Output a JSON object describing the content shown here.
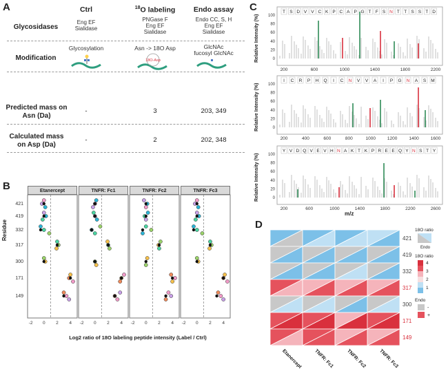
{
  "panels": {
    "a": "A",
    "b": "B",
    "c": "C",
    "d": "D"
  },
  "table": {
    "headers": [
      "Ctrl",
      "18O labeling",
      "Endo assay"
    ],
    "header_sup": "18",
    "header_rest": "O labeling",
    "rows": [
      {
        "label": "Glycosidases",
        "ctrl": [
          "Eng EF",
          "Sialidase"
        ],
        "labeling": [
          "PNGase F",
          "Eng EF",
          "Sialidase"
        ],
        "endo": [
          "Endo CC, S, H",
          "Eng EF",
          "Sialidase"
        ]
      },
      {
        "label": "Modification",
        "ctrl": [
          "Glycosylation"
        ],
        "labeling": [
          "Asn -> 18O Asp"
        ],
        "endo": [
          "GlcNAc",
          "fucosyl GlcNAc"
        ]
      },
      {
        "label": "Predicted mass on Asn (Da)",
        "ctrl": [
          "-"
        ],
        "labeling": [
          "3"
        ],
        "endo": [
          "203, 349"
        ]
      },
      {
        "label": "Calculated mass on Asp (Da)",
        "ctrl": [
          "-"
        ],
        "labeling": [
          "2"
        ],
        "endo": [
          "202, 348"
        ]
      }
    ],
    "mod_labels": {
      "labeling_badge": "18O-Asp"
    }
  },
  "panel_b": {
    "facets": [
      "Etanercept",
      "TNFR: Fc1",
      "TNFR: Fc2",
      "TNFR: Fc3"
    ],
    "ylabel": "Residue",
    "xlabel": "Log2 ratio of 18O labeling peptide intensity (Label / Ctrl)",
    "residues": [
      "421",
      "419",
      "332",
      "317",
      "300",
      "171",
      "149"
    ],
    "xticks": [
      "-2",
      "0",
      "2",
      "4"
    ]
  },
  "panel_c": {
    "ylabel": "Relative Intensity (%)",
    "xlabel": "m/z",
    "spectra": [
      {
        "sequence": [
          "T",
          "S",
          "D",
          "V",
          "V",
          "C",
          "K",
          "P",
          "C",
          "A",
          "P",
          "G",
          "T",
          "F",
          "S",
          "N",
          "T",
          "T",
          "S",
          "S",
          "T",
          "D"
        ],
        "xticks": [
          "200",
          "600",
          "1000",
          "1400",
          "1800",
          "2200"
        ],
        "yticks": [
          "0",
          "20",
          "40",
          "60",
          "80",
          "100"
        ]
      },
      {
        "sequence": [
          "I",
          "C",
          "R",
          "P",
          "H",
          "Q",
          "I",
          "C",
          "N",
          "V",
          "V",
          "A",
          "I",
          "P",
          "G",
          "N",
          "A",
          "S",
          "M"
        ],
        "xticks": [
          "200",
          "400",
          "600",
          "800",
          "1000",
          "1200",
          "1400",
          "1600"
        ],
        "yticks": [
          "0",
          "20",
          "40",
          "60",
          "80",
          "100"
        ]
      },
      {
        "sequence": [
          "Y",
          "V",
          "D",
          "Q",
          "V",
          "E",
          "V",
          "H",
          "N",
          "A",
          "K",
          "T",
          "K",
          "P",
          "R",
          "E",
          "E",
          "Q",
          "Y",
          "N",
          "S",
          "T",
          "Y"
        ],
        "xticks": [
          "200",
          "600",
          "1000",
          "1400",
          "1800",
          "2200",
          "2600"
        ],
        "yticks": [
          "0",
          "20",
          "40",
          "60",
          "80",
          "100"
        ]
      }
    ]
  },
  "panel_d": {
    "rows": [
      "421",
      "419",
      "332",
      "317",
      "300",
      "171",
      "149"
    ],
    "cols": [
      "Etanercept",
      "TNFR: Fc1",
      "TNFR: Fc2",
      "TNFR: Fc3"
    ],
    "legend_ratio_title": "18O ratio",
    "legend_ratio_sub": "Endo",
    "legend_scale_title": "18O ratio",
    "legend_scale_ticks": [
      "4",
      "3",
      "2",
      "1"
    ],
    "legend_endo_title": "Endo",
    "legend_endo_items": [
      "-",
      "+"
    ],
    "colors": {
      "blue": "#7cc0e8",
      "lightblue": "#bfe0f4",
      "pink": "#f5b4bb",
      "red": "#e5525d",
      "darkred": "#d9303d",
      "grey": "#c8c8c8"
    }
  }
}
